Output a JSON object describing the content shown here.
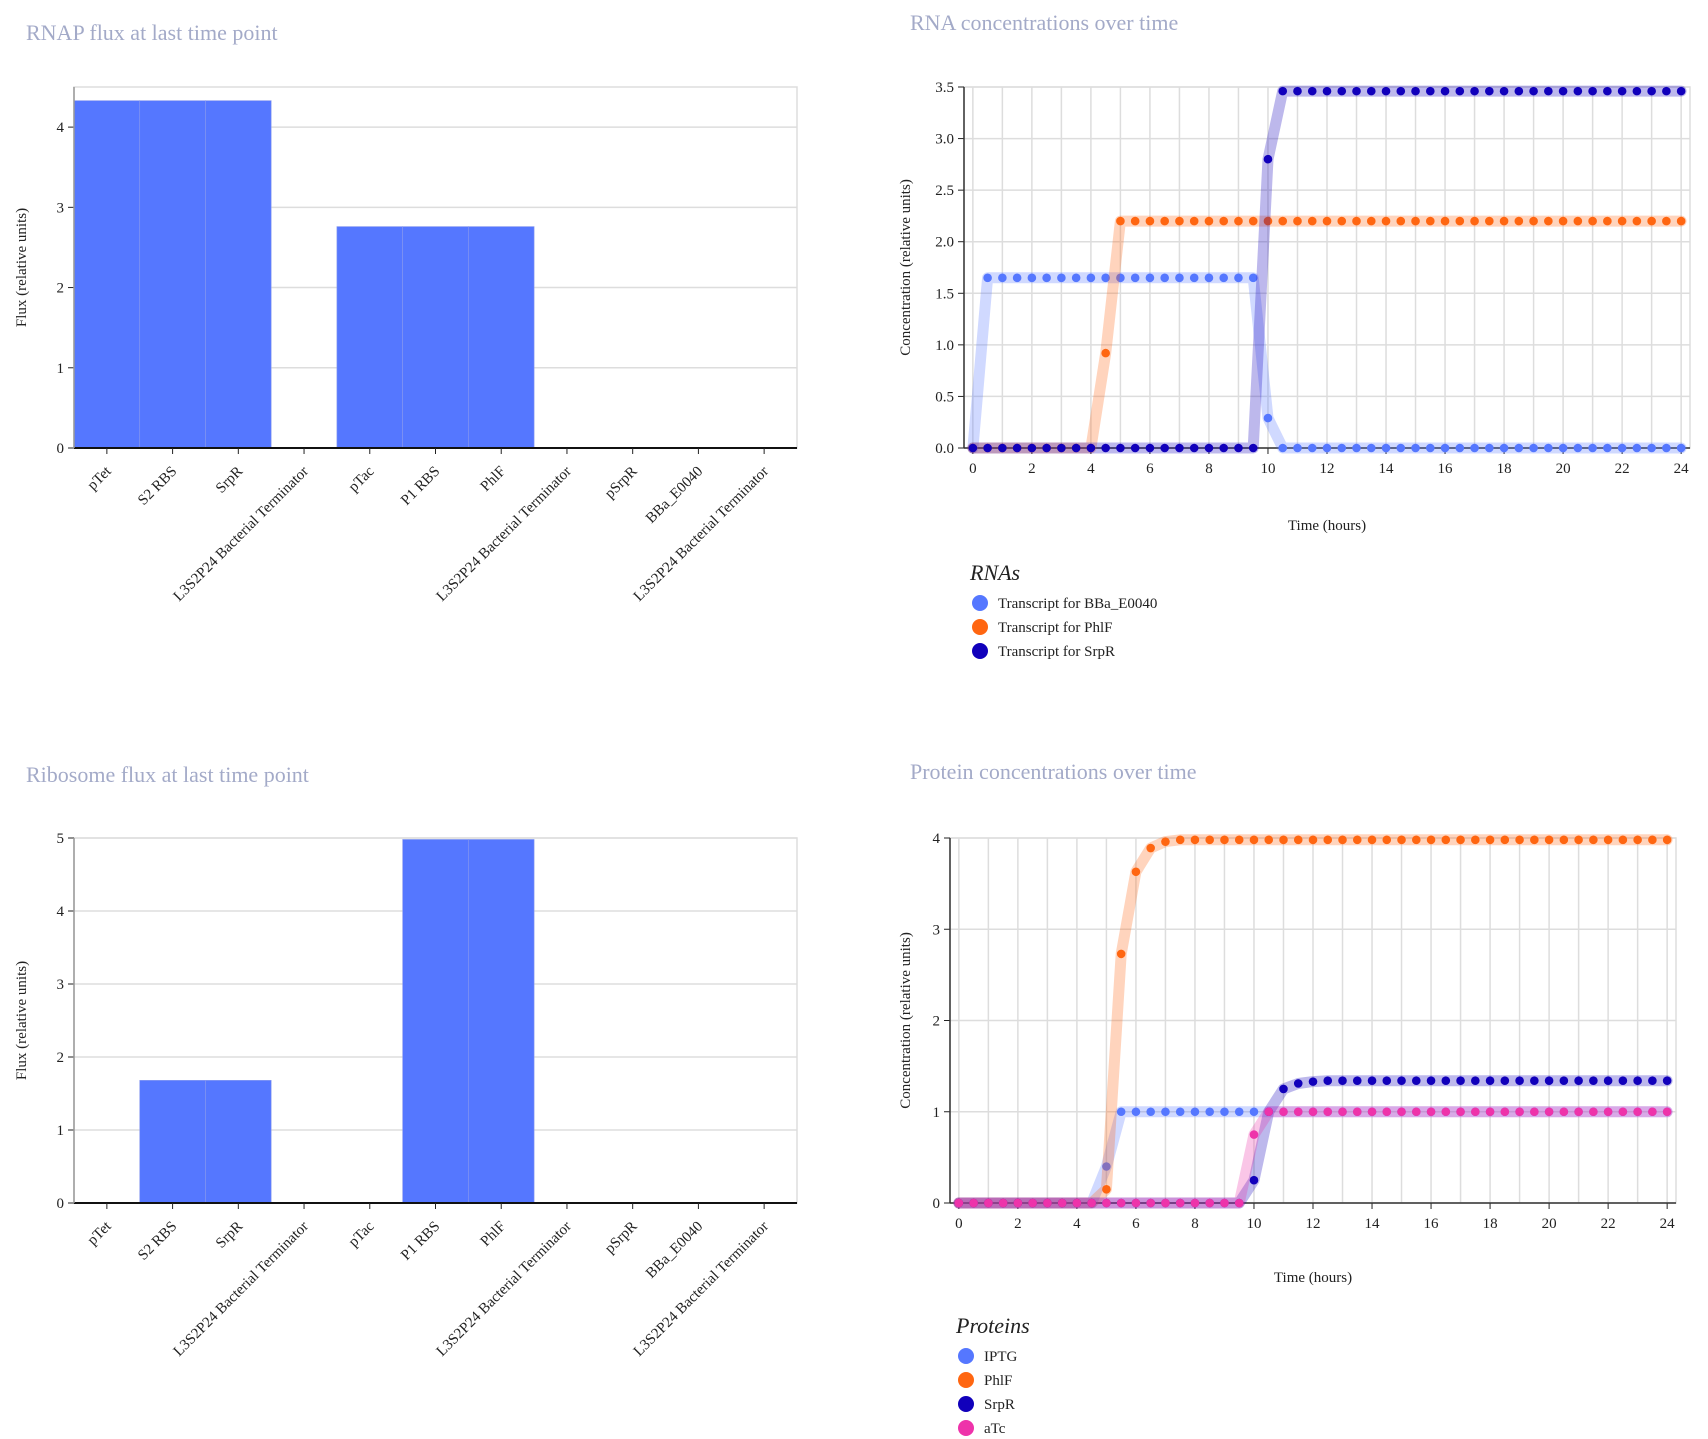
{
  "colors": {
    "title": "#a3aac8",
    "grid": "#dddddd",
    "bar": "#5577ff",
    "bar_divider": "#8899ee"
  },
  "chart_data": [
    {
      "type": "bar",
      "title": "RNAP flux at last time point",
      "xlabel": "",
      "ylabel": "Flux (relative units)",
      "ylim": [
        0,
        4.5
      ],
      "yticks": [
        0,
        1,
        2,
        3,
        4
      ],
      "grid": true,
      "categories": [
        "pTet",
        "S2 RBS",
        "SrpR",
        "L3S2P24 Bacterial Terminator",
        "pTac",
        "P1 RBS",
        "PhlF",
        "L3S2P24 Bacterial Terminator",
        "pSrpR",
        "BBa_E0040",
        "L3S2P24 Bacterial Terminator"
      ],
      "values": [
        4.33,
        4.33,
        4.33,
        0,
        2.76,
        2.76,
        2.76,
        0,
        0,
        0,
        0
      ]
    },
    {
      "type": "line",
      "title": "RNA concentrations over time",
      "xlabel": "Time (hours)",
      "ylabel": "Concentration (relative units)",
      "xlim": [
        -0.3,
        24.3
      ],
      "ylim": [
        0,
        3.5
      ],
      "xticks": [
        0,
        2,
        4,
        6,
        8,
        10,
        12,
        14,
        16,
        18,
        20,
        22,
        24
      ],
      "yticks": [
        0,
        0.5,
        1,
        1.5,
        2,
        2.5,
        3,
        3.5
      ],
      "yformat": "fixed1",
      "grid": true,
      "legend_title": "RNAs",
      "legend_position": "bottom-left",
      "x": [
        0,
        0.5,
        1,
        1.5,
        2,
        2.5,
        3,
        3.5,
        4,
        4.5,
        5,
        5.5,
        6,
        6.5,
        7,
        7.5,
        8,
        8.5,
        9,
        9.5,
        10,
        10.5,
        11,
        11.5,
        12,
        12.5,
        13,
        13.5,
        14,
        14.5,
        15,
        15.5,
        16,
        16.5,
        17,
        17.5,
        18,
        18.5,
        19,
        19.5,
        20,
        20.5,
        21,
        21.5,
        22,
        22.5,
        23,
        23.5,
        24
      ],
      "series": [
        {
          "name": "Transcript for BBa_E0040",
          "color": "#5577ff",
          "values": [
            0,
            1.65,
            1.65,
            1.65,
            1.65,
            1.65,
            1.65,
            1.65,
            1.65,
            1.65,
            1.65,
            1.65,
            1.65,
            1.65,
            1.65,
            1.65,
            1.65,
            1.65,
            1.65,
            1.65,
            0.29,
            0,
            0,
            0,
            0,
            0,
            0,
            0,
            0,
            0,
            0,
            0,
            0,
            0,
            0,
            0,
            0,
            0,
            0,
            0,
            0,
            0,
            0,
            0,
            0,
            0,
            0,
            0,
            0
          ]
        },
        {
          "name": "Transcript for PhlF",
          "color": "#ff6611",
          "values": [
            0,
            0,
            0,
            0,
            0,
            0,
            0,
            0,
            0,
            0.92,
            2.2,
            2.2,
            2.2,
            2.2,
            2.2,
            2.2,
            2.2,
            2.2,
            2.2,
            2.2,
            2.2,
            2.2,
            2.2,
            2.2,
            2.2,
            2.2,
            2.2,
            2.2,
            2.2,
            2.2,
            2.2,
            2.2,
            2.2,
            2.2,
            2.2,
            2.2,
            2.2,
            2.2,
            2.2,
            2.2,
            2.2,
            2.2,
            2.2,
            2.2,
            2.2,
            2.2,
            2.2,
            2.2,
            2.2
          ]
        },
        {
          "name": "Transcript for SrpR",
          "color": "#1100bb",
          "values": [
            0,
            0,
            0,
            0,
            0,
            0,
            0,
            0,
            0,
            0,
            0,
            0,
            0,
            0,
            0,
            0,
            0,
            0,
            0,
            0,
            2.8,
            3.46,
            3.46,
            3.46,
            3.46,
            3.46,
            3.46,
            3.46,
            3.46,
            3.46,
            3.46,
            3.46,
            3.46,
            3.46,
            3.46,
            3.46,
            3.46,
            3.46,
            3.46,
            3.46,
            3.46,
            3.46,
            3.46,
            3.46,
            3.46,
            3.46,
            3.46,
            3.46,
            3.46
          ]
        }
      ]
    },
    {
      "type": "bar",
      "title": "Ribosome flux at last time point",
      "xlabel": "",
      "ylabel": "Flux (relative units)",
      "ylim": [
        0,
        5
      ],
      "yticks": [
        0,
        1,
        2,
        3,
        4,
        5
      ],
      "grid": true,
      "categories": [
        "pTet",
        "S2 RBS",
        "SrpR",
        "L3S2P24 Bacterial Terminator",
        "pTac",
        "P1 RBS",
        "PhlF",
        "L3S2P24 Bacterial Terminator",
        "pSrpR",
        "BBa_E0040",
        "L3S2P24 Bacterial Terminator"
      ],
      "values": [
        0,
        1.68,
        1.68,
        0,
        0,
        4.98,
        4.98,
        0,
        0,
        0,
        0
      ]
    },
    {
      "type": "line",
      "title": "Protein concentrations over time",
      "xlabel": "Time (hours)",
      "ylabel": "Concentration (relative units)",
      "xlim": [
        -0.3,
        24.3
      ],
      "ylim": [
        0,
        4
      ],
      "xticks": [
        0,
        2,
        4,
        6,
        8,
        10,
        12,
        14,
        16,
        18,
        20,
        22,
        24
      ],
      "yticks": [
        0,
        1,
        2,
        3,
        4
      ],
      "yformat": "int",
      "grid": true,
      "legend_title": "Proteins",
      "legend_position": "bottom-left",
      "x": [
        0,
        0.5,
        1,
        1.5,
        2,
        2.5,
        3,
        3.5,
        4,
        4.5,
        5,
        5.5,
        6,
        6.5,
        7,
        7.5,
        8,
        8.5,
        9,
        9.5,
        10,
        10.5,
        11,
        11.5,
        12,
        12.5,
        13,
        13.5,
        14,
        14.5,
        15,
        15.5,
        16,
        16.5,
        17,
        17.5,
        18,
        18.5,
        19,
        19.5,
        20,
        20.5,
        21,
        21.5,
        22,
        22.5,
        23,
        23.5,
        24
      ],
      "series": [
        {
          "name": "IPTG",
          "color": "#5577ff",
          "values": [
            0,
            0,
            0,
            0,
            0,
            0,
            0,
            0,
            0,
            0,
            0.4,
            1,
            1,
            1,
            1,
            1,
            1,
            1,
            1,
            1,
            1,
            1,
            1,
            1,
            1,
            1,
            1,
            1,
            1,
            1,
            1,
            1,
            1,
            1,
            1,
            1,
            1,
            1,
            1,
            1,
            1,
            1,
            1,
            1,
            1,
            1,
            1,
            1,
            1
          ]
        },
        {
          "name": "PhlF",
          "color": "#ff6611",
          "values": [
            0,
            0,
            0,
            0,
            0,
            0,
            0,
            0,
            0,
            0,
            0.15,
            2.73,
            3.63,
            3.89,
            3.96,
            3.98,
            3.98,
            3.98,
            3.98,
            3.98,
            3.98,
            3.98,
            3.98,
            3.98,
            3.98,
            3.98,
            3.98,
            3.98,
            3.98,
            3.98,
            3.98,
            3.98,
            3.98,
            3.98,
            3.98,
            3.98,
            3.98,
            3.98,
            3.98,
            3.98,
            3.98,
            3.98,
            3.98,
            3.98,
            3.98,
            3.98,
            3.98,
            3.98,
            3.98
          ]
        },
        {
          "name": "SrpR",
          "color": "#1100bb",
          "values": [
            0,
            0,
            0,
            0,
            0,
            0,
            0,
            0,
            0,
            0,
            0,
            0,
            0,
            0,
            0,
            0,
            0,
            0,
            0,
            0,
            0.25,
            1,
            1.25,
            1.31,
            1.33,
            1.34,
            1.34,
            1.34,
            1.34,
            1.34,
            1.34,
            1.34,
            1.34,
            1.34,
            1.34,
            1.34,
            1.34,
            1.34,
            1.34,
            1.34,
            1.34,
            1.34,
            1.34,
            1.34,
            1.34,
            1.34,
            1.34,
            1.34,
            1.34
          ]
        },
        {
          "name": "aTc",
          "color": "#ee33aa",
          "values": [
            0,
            0,
            0,
            0,
            0,
            0,
            0,
            0,
            0,
            0,
            0,
            0,
            0,
            0,
            0,
            0,
            0,
            0,
            0,
            0,
            0.75,
            1,
            1,
            1,
            1,
            1,
            1,
            1,
            1,
            1,
            1,
            1,
            1,
            1,
            1,
            1,
            1,
            1,
            1,
            1,
            1,
            1,
            1,
            1,
            1,
            1,
            1,
            1,
            1
          ]
        }
      ]
    }
  ]
}
